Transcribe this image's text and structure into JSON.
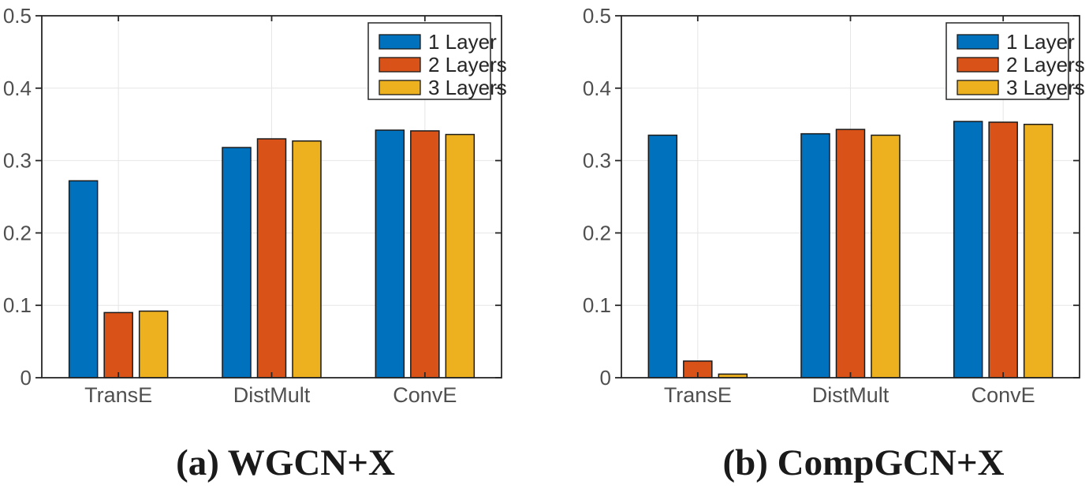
{
  "figure": {
    "background": "#ffffff",
    "captions": {
      "a": "(a) WGCN+X",
      "b": "(b) CompGCN+X"
    }
  },
  "colors": {
    "series": [
      "#0072BD",
      "#D95319",
      "#EDB120"
    ],
    "bar_edge": "#1a1a1a",
    "axis_box": "#262626",
    "grid_line": "#e6e6e6",
    "tick_label": "#4f4f4f",
    "legend_text": "#262626",
    "legend_background": "#ffffff",
    "caption_text": "#1a1a1a"
  },
  "legend": {
    "labels": [
      "1 Layer",
      "2 Layers",
      "3 Layers"
    ],
    "position": "top-right"
  },
  "chart_data": [
    {
      "id": "a",
      "type": "bar",
      "caption": "(a) WGCN+X",
      "categories": [
        "TransE",
        "DistMult",
        "ConvE"
      ],
      "series": [
        {
          "name": "1 Layer",
          "values": [
            0.272,
            0.318,
            0.342
          ]
        },
        {
          "name": "2 Layers",
          "values": [
            0.09,
            0.33,
            0.341
          ]
        },
        {
          "name": "3 Layers",
          "values": [
            0.092,
            0.327,
            0.336
          ]
        }
      ],
      "xlabel": "",
      "ylabel": "",
      "ylim": [
        0,
        0.5
      ],
      "yticks": [
        0,
        0.1,
        0.2,
        0.3,
        0.4,
        0.5
      ],
      "ytick_labels": [
        "0",
        "0.1",
        "0.2",
        "0.3",
        "0.4",
        "0.5"
      ],
      "grid": true,
      "legend_position": "top-right"
    },
    {
      "id": "b",
      "type": "bar",
      "caption": "(b) CompGCN+X",
      "categories": [
        "TransE",
        "DistMult",
        "ConvE"
      ],
      "series": [
        {
          "name": "1 Layer",
          "values": [
            0.335,
            0.337,
            0.354
          ]
        },
        {
          "name": "2 Layers",
          "values": [
            0.023,
            0.343,
            0.353
          ]
        },
        {
          "name": "3 Layers",
          "values": [
            0.005,
            0.335,
            0.35
          ]
        }
      ],
      "xlabel": "",
      "ylabel": "",
      "ylim": [
        0,
        0.5
      ],
      "yticks": [
        0,
        0.1,
        0.2,
        0.3,
        0.4,
        0.5
      ],
      "ytick_labels": [
        "0",
        "0.1",
        "0.2",
        "0.3",
        "0.4",
        "0.5"
      ],
      "grid": true,
      "legend_position": "top-right"
    }
  ]
}
